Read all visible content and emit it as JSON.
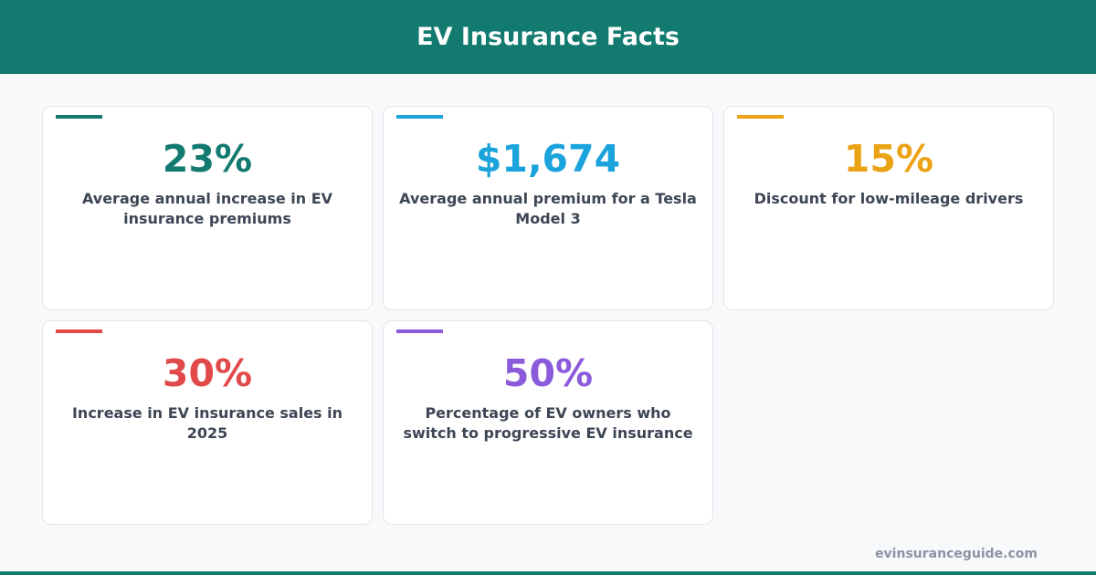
{
  "header": {
    "title": "EV Insurance Facts"
  },
  "cards": [
    {
      "value": "23%",
      "label": "Average annual increase in EV insurance premiums",
      "color": "#137a6f"
    },
    {
      "value": "$1,674",
      "label": "Average annual premium for a Tesla Model 3",
      "color": "#1ba3dc"
    },
    {
      "value": "15%",
      "label": "Discount for low-mileage drivers",
      "color": "#eba315"
    },
    {
      "value": "30%",
      "label": "Increase in EV insurance sales in 2025",
      "color": "#e14a4a"
    },
    {
      "value": "50%",
      "label": "Percentage of EV owners who switch to progressive EV insurance",
      "color": "#8c5bdb"
    }
  ],
  "footer": {
    "site": "evinsuranceguide.com"
  }
}
